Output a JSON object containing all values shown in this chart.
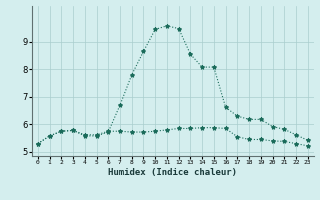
{
  "xlabel": "Humidex (Indice chaleur)",
  "x": [
    0,
    1,
    2,
    3,
    4,
    5,
    6,
    7,
    8,
    9,
    10,
    11,
    12,
    13,
    14,
    15,
    16,
    17,
    18,
    19,
    20,
    21,
    22,
    23
  ],
  "line1": [
    5.3,
    5.58,
    5.75,
    5.78,
    5.62,
    5.62,
    5.75,
    5.75,
    5.72,
    5.72,
    5.75,
    5.8,
    5.85,
    5.85,
    5.88,
    5.88,
    5.85,
    5.55,
    5.45,
    5.45,
    5.4,
    5.38,
    5.3,
    5.22
  ],
  "line2": [
    5.3,
    5.58,
    5.75,
    5.78,
    5.58,
    5.58,
    5.72,
    6.7,
    7.8,
    8.65,
    9.45,
    9.58,
    9.48,
    8.55,
    8.08,
    8.08,
    6.62,
    6.3,
    6.18,
    6.18,
    5.92,
    5.82,
    5.62,
    5.42
  ],
  "line_color": "#1a6b5a",
  "bg_color": "#d4eeee",
  "grid_color": "#aacece",
  "ylim": [
    4.85,
    10.3
  ],
  "yticks": [
    5,
    6,
    7,
    8,
    9
  ],
  "xlim": [
    -0.5,
    23.5
  ]
}
